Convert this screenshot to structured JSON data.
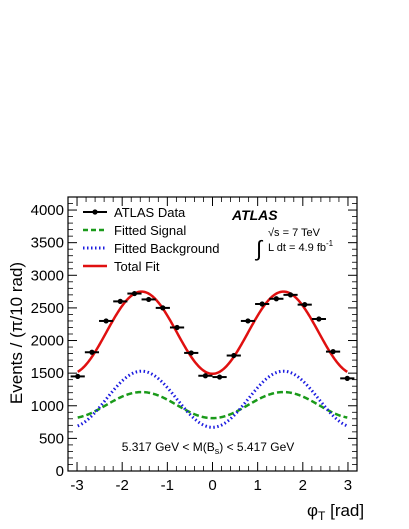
{
  "chart_data": {
    "type": "line",
    "xlabel": "φ",
    "xlabel_sub": "T",
    "xlabel_unit": " [rad]",
    "ylabel": "Events / (π/10 rad)",
    "xlim": [
      -3.2,
      3.2
    ],
    "ylim": [
      0,
      4200
    ],
    "x_ticks": [
      -3,
      -2,
      -1,
      0,
      1,
      2,
      3
    ],
    "x_tick_labels": [
      "-3",
      "-2",
      "-1",
      "0",
      "1",
      "2",
      "3"
    ],
    "y_ticks": [
      0,
      500,
      1000,
      1500,
      2000,
      2500,
      3000,
      3500,
      4000
    ],
    "y_tick_labels": [
      "0",
      "500",
      "1000",
      "1500",
      "2000",
      "2500",
      "3000",
      "3500",
      "4000"
    ],
    "grid": false,
    "legend_position": "top-left",
    "experiment_label": "ATLAS",
    "energy_label": "√s = 7 TeV",
    "lumi_label": "L dt = 4.9 fb",
    "lumi_exponent": "-1",
    "mass_window_label": "5.317 GeV < M(B",
    "mass_window_sub": "s",
    "mass_window_end": ") < 5.417 GeV",
    "series": [
      {
        "name": "ATLAS Data",
        "style": "points",
        "color": "#000000",
        "x": [
          -2.985,
          -2.67,
          -2.356,
          -2.042,
          -1.728,
          -1.414,
          -1.1,
          -0.785,
          -0.471,
          -0.157,
          0.157,
          0.471,
          0.785,
          1.1,
          1.414,
          1.728,
          2.042,
          2.356,
          2.67,
          2.985
        ],
        "y": [
          1450,
          1820,
          2300,
          2600,
          2720,
          2630,
          2500,
          2200,
          1810,
          1460,
          1440,
          1770,
          2300,
          2560,
          2640,
          2700,
          2550,
          2330,
          1830,
          1420
        ],
        "x_half_width": 0.157
      },
      {
        "name": "Fitted Signal",
        "style": "dashed",
        "color": "#1a9a1a",
        "model": {
          "offset": 1010,
          "amplitude": 200
        }
      },
      {
        "name": "Fitted Background",
        "style": "dotted",
        "color": "#1c1ce0",
        "model": {
          "offset": 1100,
          "amplitude": 430
        }
      },
      {
        "name": "Total Fit",
        "style": "solid",
        "color": "#e01010",
        "model": {
          "offset": 2120,
          "amplitude": 630
        }
      }
    ]
  }
}
